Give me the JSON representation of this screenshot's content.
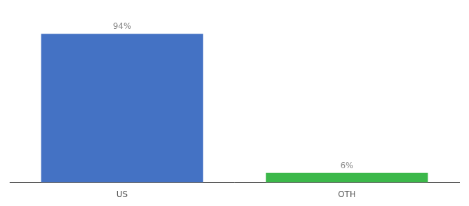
{
  "chart_data": {
    "type": "bar",
    "categories": [
      "US",
      "OTH"
    ],
    "values": [
      94,
      6
    ],
    "value_labels": [
      "94%",
      "6%"
    ],
    "colors": [
      "#4472c4",
      "#3cb84a"
    ],
    "ylim": [
      0,
      105
    ],
    "data_labels": true,
    "tick_labels": "x",
    "grid": false
  }
}
